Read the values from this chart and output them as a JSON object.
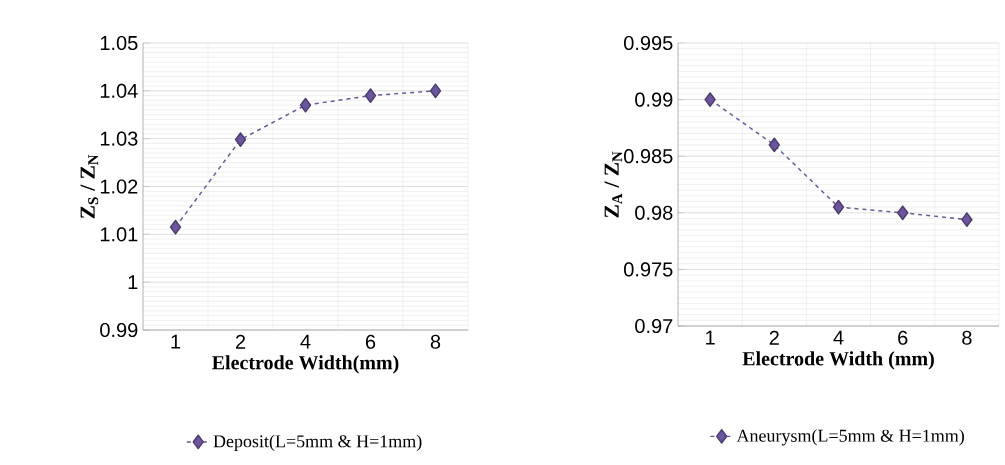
{
  "chart_data": [
    {
      "type": "line",
      "categories": [
        "1",
        "2",
        "4",
        "6",
        "8"
      ],
      "xlabel": "Electrode Width(mm)",
      "ylabel": "Z$_{S}$ / Z$_{N}$",
      "ylim": [
        0.99,
        1.05
      ],
      "yticks": [
        0.99,
        1,
        1.01,
        1.02,
        1.03,
        1.04,
        1.05
      ],
      "grid": true,
      "legend": "bottom",
      "marker": "diamond",
      "line_style": "dashed",
      "series": [
        {
          "name": "Deposit(L=5mm & H=1mm)",
          "color": "#6b559c",
          "values": [
            1.0115,
            1.0298,
            1.037,
            1.039,
            1.04
          ]
        }
      ]
    },
    {
      "type": "line",
      "categories": [
        "1",
        "2",
        "4",
        "6",
        "8"
      ],
      "xlabel": "Electrode Width (mm)",
      "ylabel": "Z$_{A}$ / Z$_{N}$",
      "ylim": [
        0.97,
        0.995
      ],
      "yticks": [
        0.97,
        0.975,
        0.98,
        0.985,
        0.99,
        0.995
      ],
      "grid": true,
      "legend": "bottom",
      "marker": "diamond",
      "line_style": "dashed",
      "series": [
        {
          "name": "Aneurysm(L=5mm & H=1mm)",
          "color": "#6b559c",
          "values": [
            0.99,
            0.986,
            0.9805,
            0.98,
            0.9794
          ]
        }
      ]
    }
  ]
}
